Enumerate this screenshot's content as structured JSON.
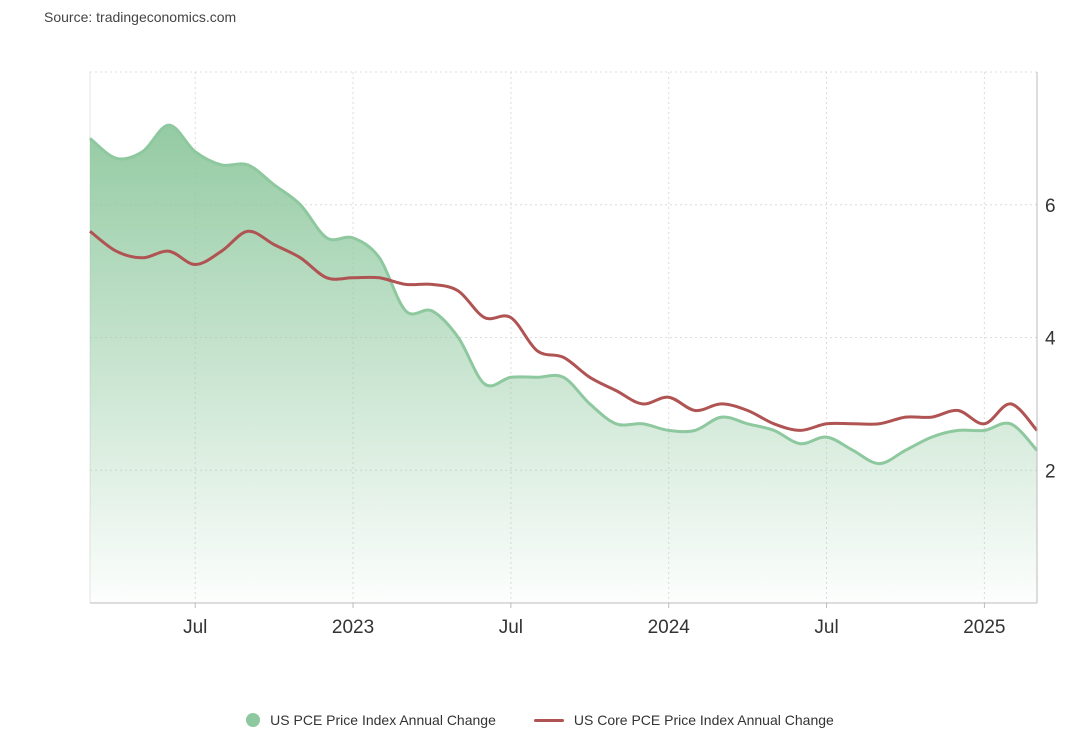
{
  "source": "Source: tradingeconomics.com",
  "chart_data": {
    "type": "area",
    "x_axis": {
      "range": [
        "2022-03",
        "2025-04"
      ],
      "tick_labels": [
        {
          "label": "Jul",
          "date": "2022-07"
        },
        {
          "label": "2023",
          "date": "2023-01"
        },
        {
          "label": "Jul",
          "date": "2023-07"
        },
        {
          "label": "2024",
          "date": "2024-01"
        },
        {
          "label": "Jul",
          "date": "2024-07"
        },
        {
          "label": "2025",
          "date": "2025-01"
        }
      ]
    },
    "y_axis": {
      "range": [
        0,
        8
      ],
      "ticks": [
        2,
        4,
        6
      ],
      "position": "right",
      "grid": true
    },
    "legend_position": "bottom-center",
    "series": [
      {
        "name": "US PCE Price Index Annual Change",
        "type": "area",
        "color": "#8ec89e",
        "points": [
          {
            "x": "2022-03",
            "y": 7.0
          },
          {
            "x": "2022-04",
            "y": 6.7
          },
          {
            "x": "2022-05",
            "y": 6.8
          },
          {
            "x": "2022-06",
            "y": 7.2
          },
          {
            "x": "2022-07",
            "y": 6.8
          },
          {
            "x": "2022-08",
            "y": 6.6
          },
          {
            "x": "2022-09",
            "y": 6.6
          },
          {
            "x": "2022-10",
            "y": 6.3
          },
          {
            "x": "2022-11",
            "y": 6.0
          },
          {
            "x": "2022-12",
            "y": 5.5
          },
          {
            "x": "2023-01",
            "y": 5.5
          },
          {
            "x": "2023-02",
            "y": 5.2
          },
          {
            "x": "2023-03",
            "y": 4.4
          },
          {
            "x": "2023-04",
            "y": 4.4
          },
          {
            "x": "2023-05",
            "y": 4.0
          },
          {
            "x": "2023-06",
            "y": 3.3
          },
          {
            "x": "2023-07",
            "y": 3.4
          },
          {
            "x": "2023-08",
            "y": 3.4
          },
          {
            "x": "2023-09",
            "y": 3.4
          },
          {
            "x": "2023-10",
            "y": 3.0
          },
          {
            "x": "2023-11",
            "y": 2.7
          },
          {
            "x": "2023-12",
            "y": 2.7
          },
          {
            "x": "2024-01",
            "y": 2.6
          },
          {
            "x": "2024-02",
            "y": 2.6
          },
          {
            "x": "2024-03",
            "y": 2.8
          },
          {
            "x": "2024-04",
            "y": 2.7
          },
          {
            "x": "2024-05",
            "y": 2.6
          },
          {
            "x": "2024-06",
            "y": 2.4
          },
          {
            "x": "2024-07",
            "y": 2.5
          },
          {
            "x": "2024-08",
            "y": 2.3
          },
          {
            "x": "2024-09",
            "y": 2.1
          },
          {
            "x": "2024-10",
            "y": 2.3
          },
          {
            "x": "2024-11",
            "y": 2.5
          },
          {
            "x": "2024-12",
            "y": 2.6
          },
          {
            "x": "2025-01",
            "y": 2.6
          },
          {
            "x": "2025-02",
            "y": 2.7
          },
          {
            "x": "2025-03",
            "y": 2.3
          }
        ]
      },
      {
        "name": "US Core PCE Price Index Annual Change",
        "type": "line",
        "color": "#b05353",
        "points": [
          {
            "x": "2022-03",
            "y": 5.6
          },
          {
            "x": "2022-04",
            "y": 5.3
          },
          {
            "x": "2022-05",
            "y": 5.2
          },
          {
            "x": "2022-06",
            "y": 5.3
          },
          {
            "x": "2022-07",
            "y": 5.1
          },
          {
            "x": "2022-08",
            "y": 5.3
          },
          {
            "x": "2022-09",
            "y": 5.6
          },
          {
            "x": "2022-10",
            "y": 5.4
          },
          {
            "x": "2022-11",
            "y": 5.2
          },
          {
            "x": "2022-12",
            "y": 4.9
          },
          {
            "x": "2023-01",
            "y": 4.9
          },
          {
            "x": "2023-02",
            "y": 4.9
          },
          {
            "x": "2023-03",
            "y": 4.8
          },
          {
            "x": "2023-04",
            "y": 4.8
          },
          {
            "x": "2023-05",
            "y": 4.7
          },
          {
            "x": "2023-06",
            "y": 4.3
          },
          {
            "x": "2023-07",
            "y": 4.3
          },
          {
            "x": "2023-08",
            "y": 3.8
          },
          {
            "x": "2023-09",
            "y": 3.7
          },
          {
            "x": "2023-10",
            "y": 3.4
          },
          {
            "x": "2023-11",
            "y": 3.2
          },
          {
            "x": "2023-12",
            "y": 3.0
          },
          {
            "x": "2024-01",
            "y": 3.1
          },
          {
            "x": "2024-02",
            "y": 2.9
          },
          {
            "x": "2024-03",
            "y": 3.0
          },
          {
            "x": "2024-04",
            "y": 2.9
          },
          {
            "x": "2024-05",
            "y": 2.7
          },
          {
            "x": "2024-06",
            "y": 2.6
          },
          {
            "x": "2024-07",
            "y": 2.7
          },
          {
            "x": "2024-08",
            "y": 2.7
          },
          {
            "x": "2024-09",
            "y": 2.7
          },
          {
            "x": "2024-10",
            "y": 2.8
          },
          {
            "x": "2024-11",
            "y": 2.8
          },
          {
            "x": "2024-12",
            "y": 2.9
          },
          {
            "x": "2025-01",
            "y": 2.7
          },
          {
            "x": "2025-02",
            "y": 3.0
          },
          {
            "x": "2025-03",
            "y": 2.6
          }
        ]
      }
    ]
  }
}
